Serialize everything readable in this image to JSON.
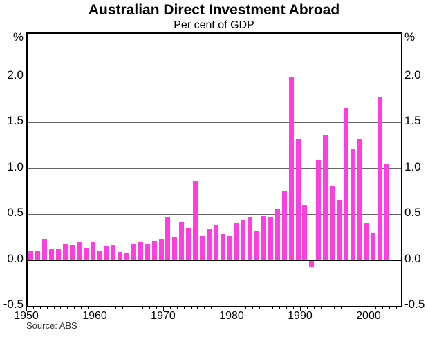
{
  "chart_data": {
    "type": "bar",
    "title": "Australian Direct Investment Abroad",
    "subtitle": "Per cent of GDP",
    "unit_label": "%",
    "source": "Source: ABS",
    "bar_color": "#FF3DE3",
    "grid_color": "#666666",
    "axis_color": "#000000",
    "grid": "horizontal",
    "legend": "none",
    "ylim": [
      -0.5,
      2.465
    ],
    "yticks": [
      2.0,
      1.5,
      1.0,
      0.5,
      0.0,
      -0.5
    ],
    "ytick_labels": [
      "2.0",
      "1.5",
      "1.0",
      "0.5",
      "0.0",
      "-0.5"
    ],
    "x_axis_start_year": 1950,
    "x_axis_end_year": 2004.55,
    "year_ticks_from": 1950,
    "year_ticks_to": 2004,
    "xtick_labels": [
      "1950",
      "1960",
      "1970",
      "1980",
      "1990",
      "2000"
    ],
    "xtick_label_years": [
      1950,
      1960,
      1970,
      1980,
      1990,
      2000
    ],
    "categories": [
      1950,
      1951,
      1952,
      1953,
      1954,
      1955,
      1956,
      1957,
      1958,
      1959,
      1960,
      1961,
      1962,
      1963,
      1964,
      1965,
      1966,
      1967,
      1968,
      1969,
      1970,
      1971,
      1972,
      1973,
      1974,
      1975,
      1976,
      1977,
      1978,
      1979,
      1980,
      1981,
      1982,
      1983,
      1984,
      1985,
      1986,
      1987,
      1988,
      1989,
      1990,
      1991,
      1992,
      1993,
      1994,
      1995,
      1996,
      1997,
      1998,
      1999,
      2000,
      2001,
      2002
    ],
    "values": [
      0.1,
      0.1,
      0.23,
      0.12,
      0.12,
      0.18,
      0.16,
      0.2,
      0.13,
      0.19,
      0.1,
      0.15,
      0.16,
      0.09,
      0.07,
      0.18,
      0.19,
      0.17,
      0.21,
      0.23,
      0.47,
      0.25,
      0.41,
      0.35,
      0.86,
      0.26,
      0.34,
      0.38,
      0.28,
      0.26,
      0.4,
      0.44,
      0.46,
      0.31,
      0.48,
      0.46,
      0.56,
      0.75,
      1.99,
      1.32,
      0.6,
      -0.06,
      1.09,
      1.37,
      0.8,
      0.66,
      1.66,
      1.21,
      1.32,
      0.4,
      0.3,
      1.77,
      1.05
    ]
  }
}
